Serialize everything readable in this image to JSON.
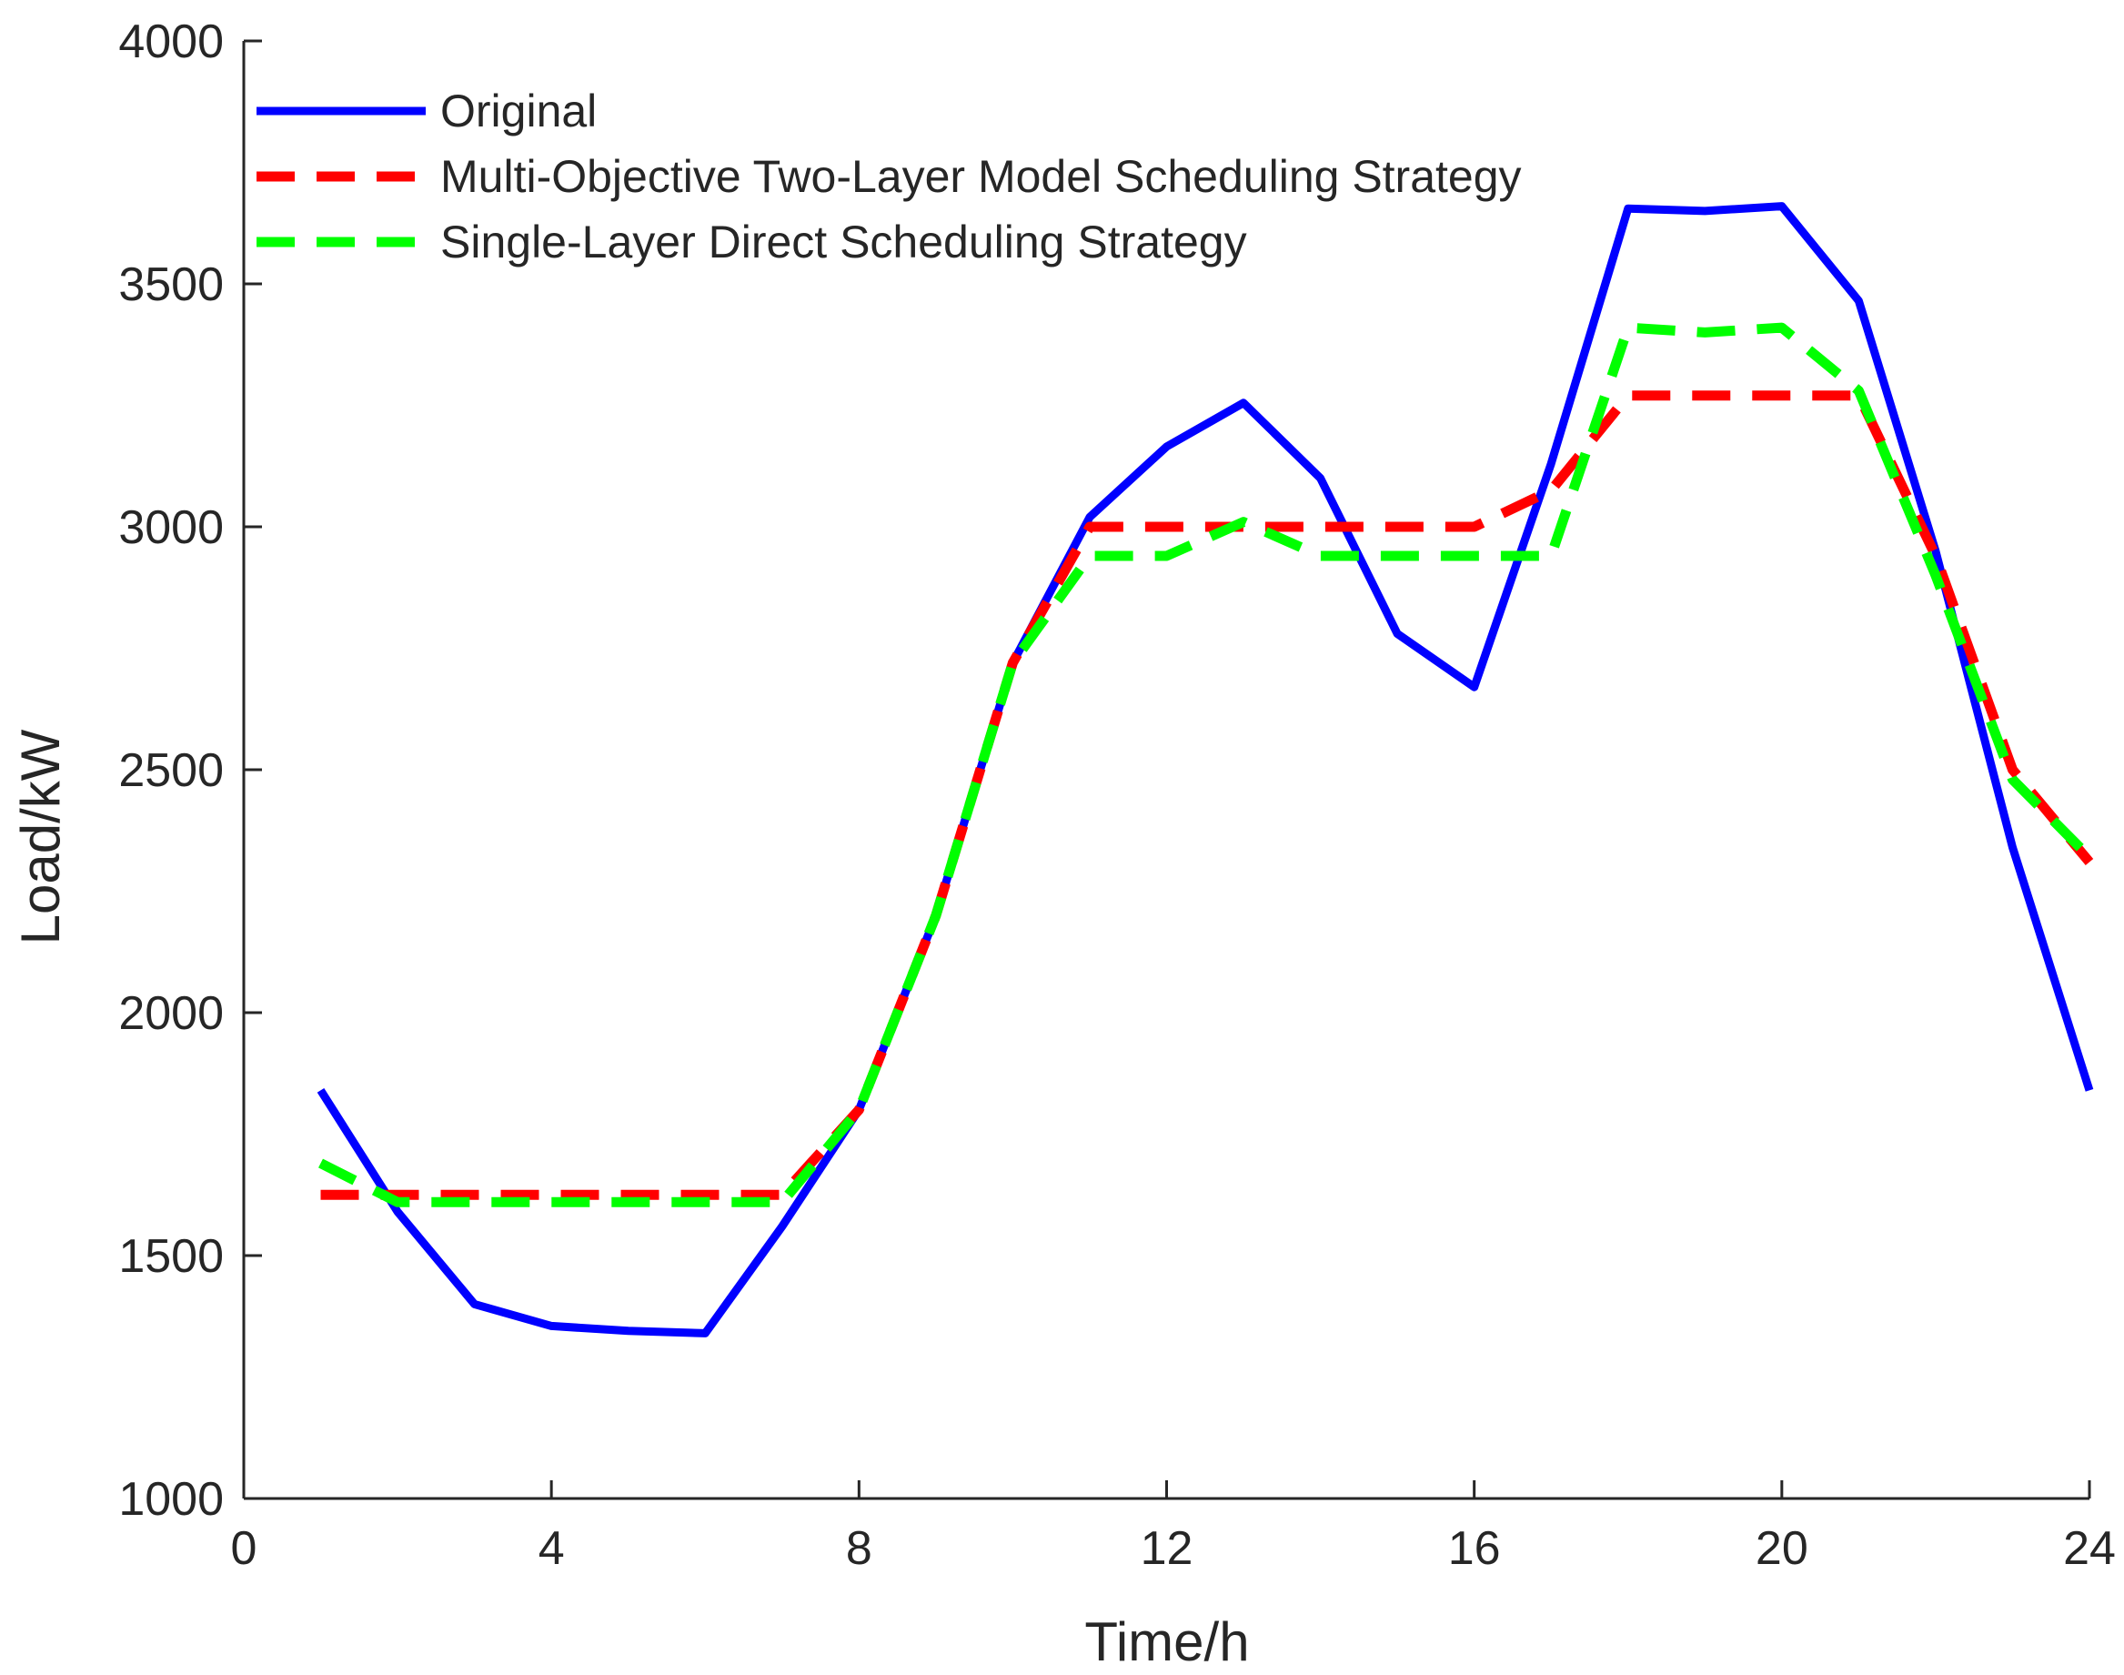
{
  "chart_data": {
    "type": "line",
    "title": "",
    "xlabel": "Time/h",
    "ylabel": "Load/kW",
    "xlim": [
      0,
      24
    ],
    "ylim": [
      1000,
      4000
    ],
    "xticks": [
      0,
      4,
      8,
      12,
      16,
      20,
      24
    ],
    "yticks": [
      1000,
      1500,
      2000,
      2500,
      3000,
      3500,
      4000
    ],
    "grid": false,
    "legend_position": "top-left",
    "x": [
      1,
      2,
      3,
      4,
      5,
      6,
      7,
      8,
      9,
      10,
      11,
      12,
      13,
      14,
      15,
      16,
      17,
      18,
      19,
      20,
      21,
      22,
      23,
      24
    ],
    "series": [
      {
        "name": "Original",
        "color": "#0000ff",
        "style": "solid",
        "values": [
          1840,
          1590,
          1400,
          1355,
          1345,
          1340,
          1560,
          1800,
          2200,
          2720,
          3020,
          3165,
          3255,
          3100,
          2780,
          2670,
          3130,
          3655,
          3650,
          3660,
          3465,
          2950,
          2340,
          1840
        ]
      },
      {
        "name": "Multi-Objective Two-Layer Model Scheduling Strategy",
        "color": "#ff0000",
        "style": "dashed",
        "values": [
          1625,
          1625,
          1625,
          1625,
          1625,
          1625,
          1625,
          1800,
          2200,
          2720,
          3000,
          3000,
          3000,
          3000,
          3000,
          3000,
          3075,
          3270,
          3270,
          3270,
          3270,
          2940,
          2500,
          2310
        ]
      },
      {
        "name": "Single-Layer Direct Scheduling Strategy",
        "color": "#00ff00",
        "style": "dashed",
        "values": [
          1690,
          1610,
          1610,
          1610,
          1610,
          1610,
          1610,
          1800,
          2200,
          2720,
          2940,
          2940,
          3010,
          2940,
          2940,
          2940,
          2940,
          3410,
          3400,
          3410,
          3280,
          2900,
          2480,
          2320
        ]
      }
    ]
  }
}
